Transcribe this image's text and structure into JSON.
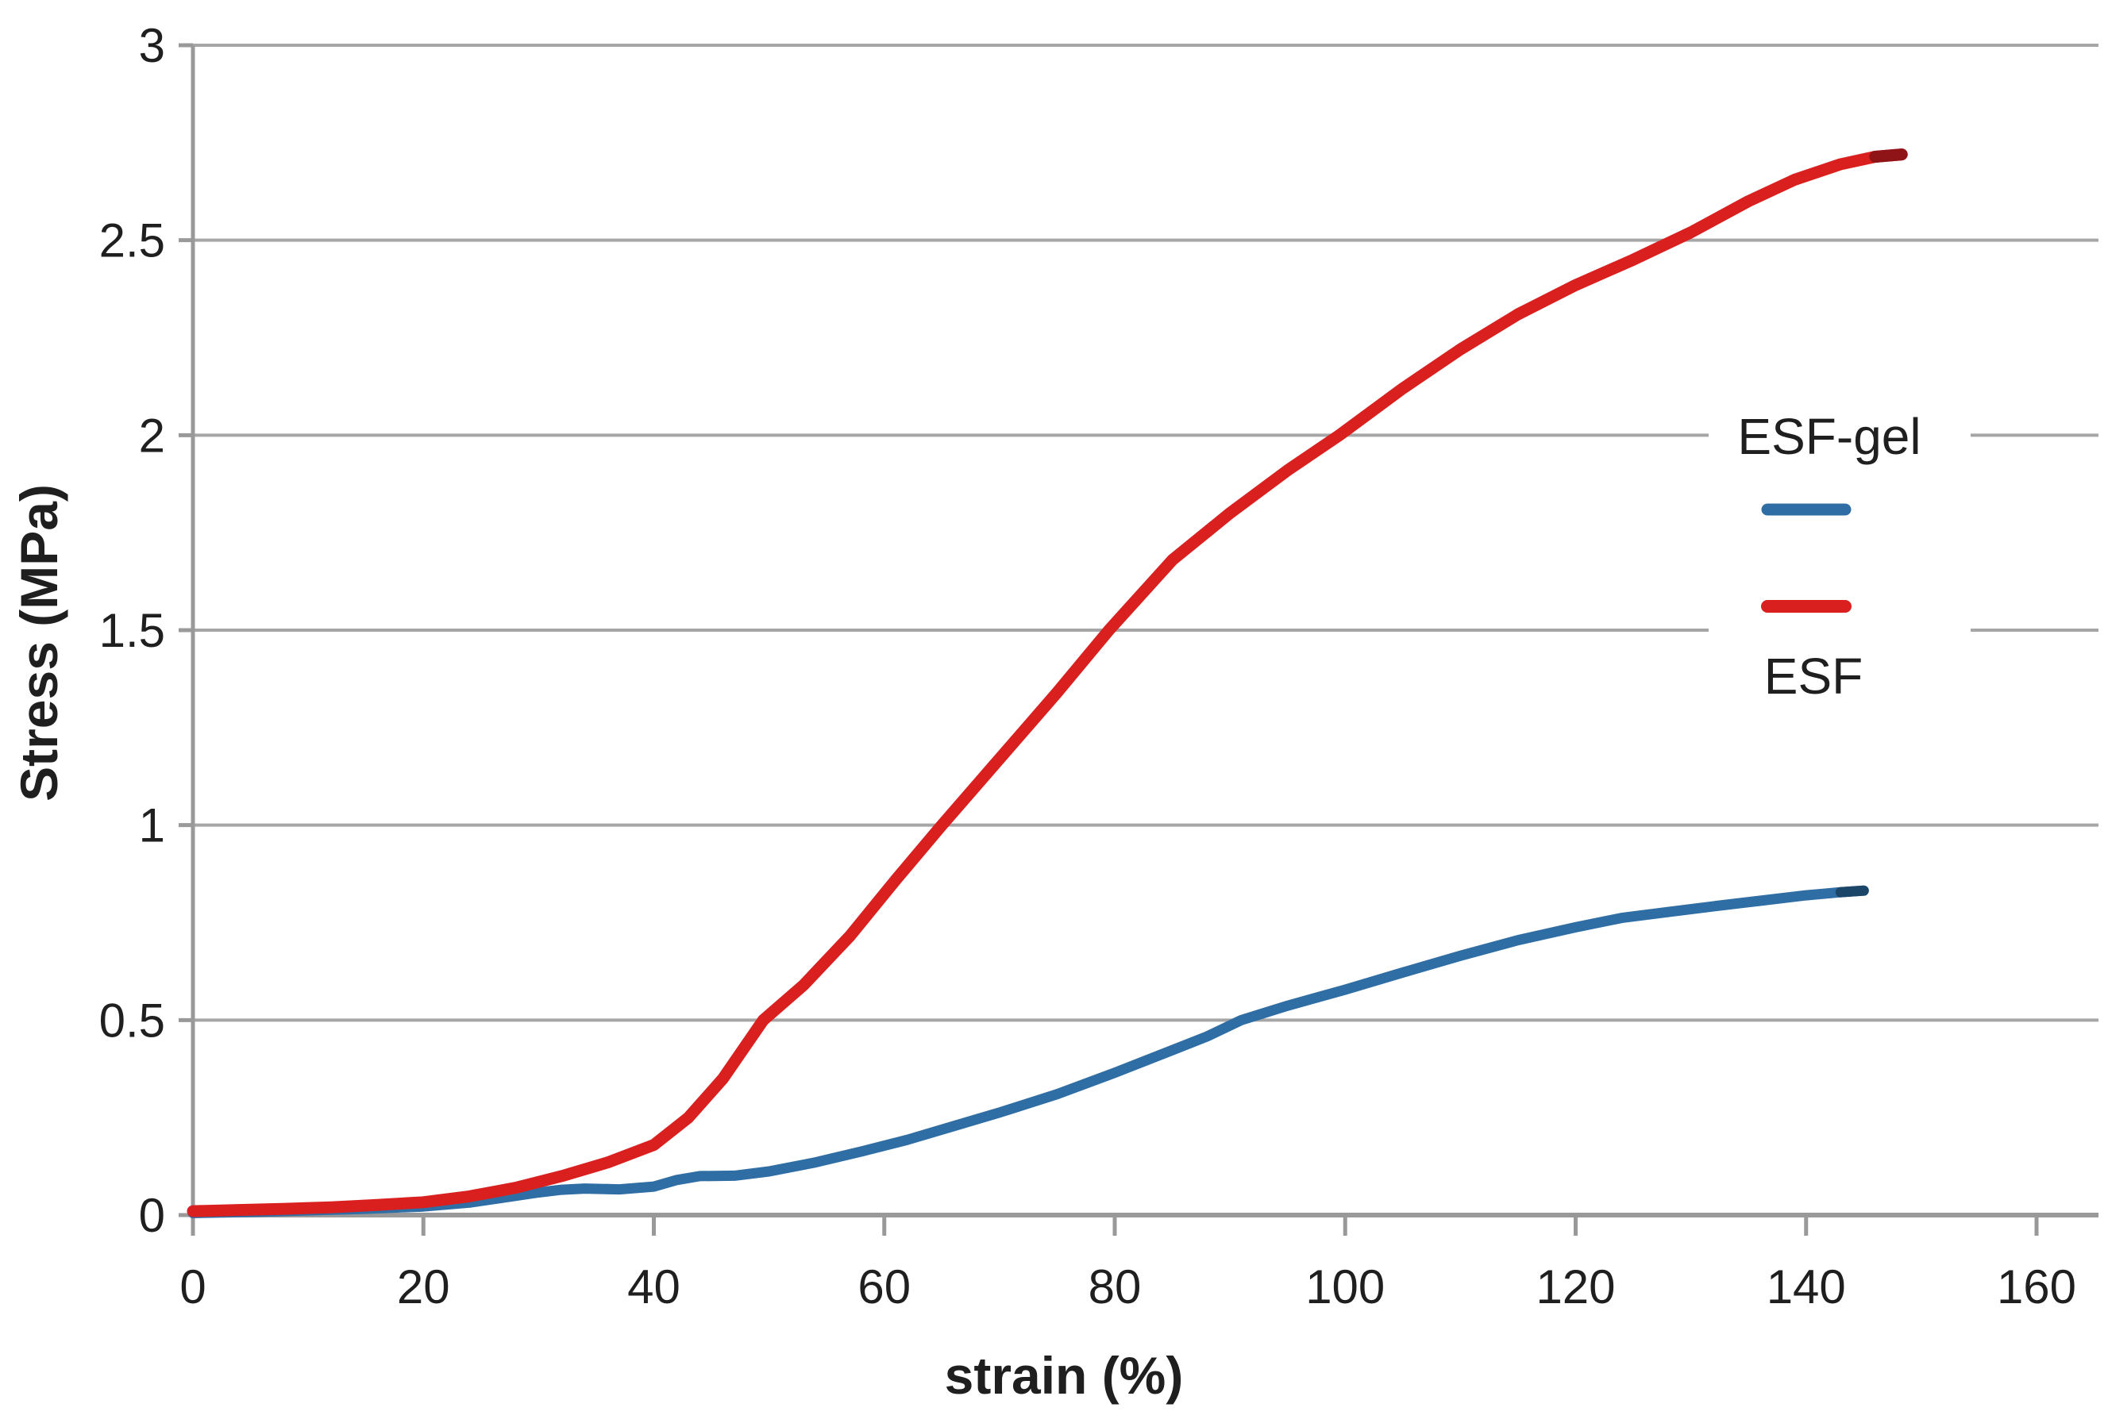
{
  "chart_data": {
    "type": "line",
    "title": "",
    "xlabel": "strain (%)",
    "ylabel": "Stress (MPa)",
    "xlim": [
      0,
      160
    ],
    "ylim": [
      0,
      3
    ],
    "x_ticks": [
      0,
      20,
      40,
      60,
      80,
      100,
      120,
      140,
      160
    ],
    "y_ticks": [
      0,
      0.5,
      1,
      1.5,
      2,
      2.5,
      3
    ],
    "x_tick_labels": [
      "0",
      "20",
      "40",
      "60",
      "80",
      "100",
      "120",
      "140",
      "160"
    ],
    "y_tick_labels": [
      "0",
      "0.5",
      "1",
      "1.5",
      "2",
      "2.5",
      "3"
    ],
    "grid": "horizontal",
    "legend_position": "inside-right",
    "series": [
      {
        "name": "ESF-gel",
        "color": "#2f6da5",
        "tip_color": "#1c4667",
        "tip_from": 143,
        "width": 13,
        "points": [
          [
            0,
            0.005
          ],
          [
            5,
            0.008
          ],
          [
            10,
            0.012
          ],
          [
            15,
            0.016
          ],
          [
            20,
            0.022
          ],
          [
            24,
            0.032
          ],
          [
            27,
            0.045
          ],
          [
            30,
            0.058
          ],
          [
            32,
            0.065
          ],
          [
            34,
            0.068
          ],
          [
            37,
            0.066
          ],
          [
            40,
            0.073
          ],
          [
            42,
            0.09
          ],
          [
            44,
            0.1
          ],
          [
            47,
            0.101
          ],
          [
            50,
            0.112
          ],
          [
            54,
            0.135
          ],
          [
            58,
            0.163
          ],
          [
            62,
            0.193
          ],
          [
            66,
            0.228
          ],
          [
            70,
            0.263
          ],
          [
            75,
            0.31
          ],
          [
            80,
            0.365
          ],
          [
            85,
            0.423
          ],
          [
            88,
            0.458
          ],
          [
            91,
            0.5
          ],
          [
            95,
            0.537
          ],
          [
            100,
            0.578
          ],
          [
            105,
            0.622
          ],
          [
            110,
            0.665
          ],
          [
            115,
            0.705
          ],
          [
            120,
            0.738
          ],
          [
            124,
            0.762
          ],
          [
            128,
            0.777
          ],
          [
            132,
            0.792
          ],
          [
            136,
            0.806
          ],
          [
            140,
            0.82
          ],
          [
            143,
            0.828
          ],
          [
            145,
            0.832
          ]
        ]
      },
      {
        "name": "ESF",
        "color": "#d9201f",
        "tip_color": "#8e1418",
        "tip_from": 146,
        "width": 15,
        "points": [
          [
            0,
            0.01
          ],
          [
            4,
            0.013
          ],
          [
            8,
            0.016
          ],
          [
            12,
            0.02
          ],
          [
            16,
            0.026
          ],
          [
            20,
            0.033
          ],
          [
            24,
            0.048
          ],
          [
            28,
            0.07
          ],
          [
            32,
            0.1
          ],
          [
            36,
            0.135
          ],
          [
            40,
            0.18
          ],
          [
            43,
            0.25
          ],
          [
            46,
            0.35
          ],
          [
            49.5,
            0.5
          ],
          [
            53,
            0.59
          ],
          [
            57,
            0.715
          ],
          [
            61,
            0.86
          ],
          [
            65,
            1.0
          ],
          [
            70,
            1.17
          ],
          [
            75,
            1.34
          ],
          [
            79.5,
            1.5
          ],
          [
            85,
            1.68
          ],
          [
            90,
            1.8
          ],
          [
            95,
            1.91
          ],
          [
            99.5,
            2.0
          ],
          [
            105,
            2.12
          ],
          [
            110,
            2.22
          ],
          [
            115,
            2.31
          ],
          [
            120,
            2.385
          ],
          [
            125,
            2.45
          ],
          [
            130,
            2.52
          ],
          [
            135,
            2.6
          ],
          [
            139,
            2.655
          ],
          [
            143,
            2.695
          ],
          [
            146,
            2.714
          ],
          [
            148.3,
            2.72
          ]
        ]
      }
    ]
  },
  "legend": {
    "items": [
      {
        "label": "ESF-gel",
        "color": "#2f6da5"
      },
      {
        "label": "ESF",
        "color": "#d9201f"
      }
    ]
  },
  "colors": {
    "grid": "#a6a6a6",
    "axis": "#999999",
    "text": "#1f1f1f",
    "background": "#ffffff",
    "legend_background": "#ffffff"
  }
}
